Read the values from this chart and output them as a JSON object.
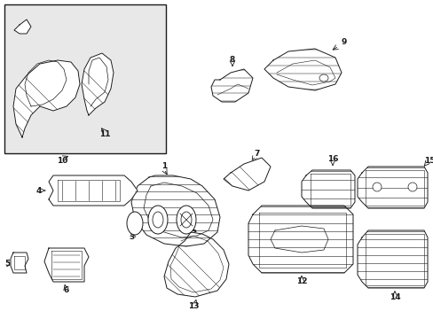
{
  "background_color": "#ffffff",
  "line_color": "#1a1a1a",
  "inset_bg": "#ececec",
  "figsize": [
    4.89,
    3.6
  ],
  "dpi": 100,
  "lw": 0.7,
  "fs": 6.5
}
